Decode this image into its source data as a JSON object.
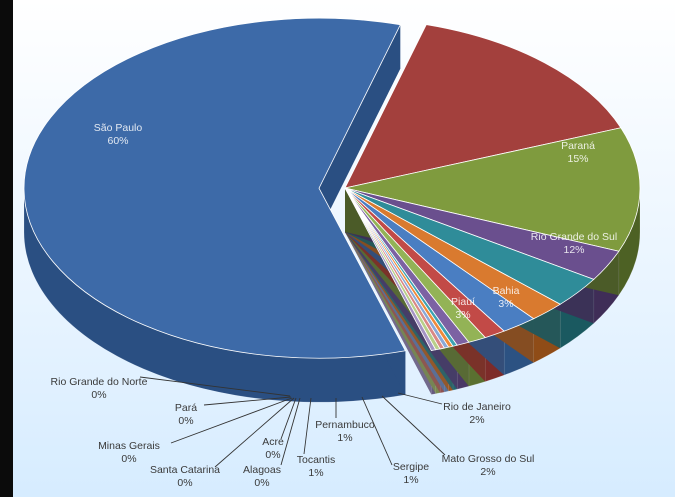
{
  "chart_data": {
    "type": "pie",
    "style": "3d-exploded",
    "slices": [
      {
        "label": "São Paulo",
        "pct_label": "60%",
        "value": 60,
        "color": "#3d6aa8",
        "side": "#2a4f82"
      },
      {
        "label": "Paraná",
        "pct_label": "15%",
        "value": 15,
        "color": "#a3403d",
        "side": "#6e2826"
      },
      {
        "label": "Rio Grande do Sul",
        "pct_label": "12%",
        "value": 12,
        "color": "#7f9b3e",
        "side": "#4d6124"
      },
      {
        "label": "Bahia",
        "pct_label": "3%",
        "value": 3,
        "color": "#6a4f8e",
        "side": "#3f2d57"
      },
      {
        "label": "Piauí",
        "pct_label": "3%",
        "value": 3,
        "color": "#2f8c99",
        "side": "#1a5960"
      },
      {
        "label": "Rio de Janeiro",
        "pct_label": "2%",
        "value": 2,
        "color": "#d97a2f",
        "side": "#8f4c17"
      },
      {
        "label": "Mato Grosso do Sul",
        "pct_label": "2%",
        "value": 2,
        "color": "#4a7ec2",
        "side": "#2c5282"
      },
      {
        "label": "Sergipe",
        "pct_label": "1%",
        "value": 1.2,
        "color": "#c24a47",
        "side": "#7d2b29"
      },
      {
        "label": "Pernambuco",
        "pct_label": "1%",
        "value": 1,
        "color": "#93b356",
        "side": "#5a7030"
      },
      {
        "label": "Tocantis",
        "pct_label": "1%",
        "value": 0.7,
        "color": "#7c62a3",
        "side": "#4a3866"
      },
      {
        "label": "Alagoas",
        "pct_label": "0%",
        "value": 0.25,
        "color": "#3da3b2",
        "side": "#226570"
      },
      {
        "label": "Acre",
        "pct_label": "0%",
        "value": 0.25,
        "color": "#f08a3a",
        "side": "#9a551f"
      },
      {
        "label": "Santa Catarina",
        "pct_label": "0%",
        "value": 0.25,
        "color": "#8aa8d8",
        "side": "#55729d"
      },
      {
        "label": "Minas Gerais",
        "pct_label": "0%",
        "value": 0.25,
        "color": "#d98885",
        "side": "#8f5251"
      },
      {
        "label": "Pará",
        "pct_label": "0%",
        "value": 0.25,
        "color": "#b9cf8a",
        "side": "#78894f"
      },
      {
        "label": "Rio Grande do Norte",
        "pct_label": "0%",
        "value": 0.25,
        "color": "#a594c4",
        "side": "#665a80"
      }
    ]
  }
}
